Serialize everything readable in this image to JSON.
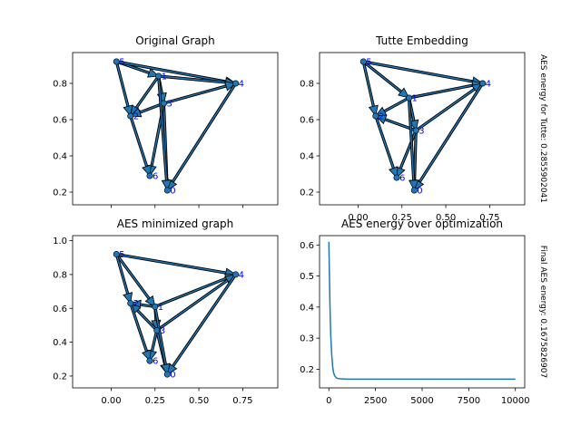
{
  "chart_data": [
    {
      "type": "graph",
      "title": "Original Graph",
      "xlim": [
        -0.22,
        0.95
      ],
      "ylim": [
        0.13,
        0.97
      ],
      "xticks": [
        0.0,
        0.25,
        0.5,
        0.75
      ],
      "xtick_labels": [
        "",
        "",
        "",
        ""
      ],
      "yticks": [
        0.2,
        0.4,
        0.6,
        0.8
      ],
      "ytick_labels": [
        "0.2",
        "0.4",
        "0.6",
        "0.8"
      ],
      "nodes": [
        {
          "id": "0",
          "x": 0.32,
          "y": 0.21
        },
        {
          "id": "1",
          "x": 0.27,
          "y": 0.84
        },
        {
          "id": "2",
          "x": 0.11,
          "y": 0.62
        },
        {
          "id": "3",
          "x": 0.3,
          "y": 0.69
        },
        {
          "id": "4",
          "x": 0.71,
          "y": 0.8
        },
        {
          "id": "5",
          "x": 0.03,
          "y": 0.92
        },
        {
          "id": "6",
          "x": 0.22,
          "y": 0.29
        }
      ],
      "edges": [
        [
          5,
          1
        ],
        [
          5,
          4
        ],
        [
          5,
          2
        ],
        [
          1,
          4
        ],
        [
          1,
          2
        ],
        [
          1,
          3
        ],
        [
          3,
          4
        ],
        [
          3,
          2
        ],
        [
          3,
          0
        ],
        [
          3,
          6
        ],
        [
          2,
          6
        ],
        [
          4,
          0
        ],
        [
          1,
          0
        ]
      ],
      "side_note": ""
    },
    {
      "type": "graph",
      "title": "Tutte Embedding",
      "xlim": [
        -0.22,
        0.95
      ],
      "ylim": [
        0.13,
        0.97
      ],
      "xticks": [
        0.0,
        0.25,
        0.5,
        0.75
      ],
      "xtick_labels": [
        "0.00",
        "0.25",
        "0.50",
        "0.75"
      ],
      "yticks": [
        0.2,
        0.4,
        0.6,
        0.8
      ],
      "ytick_labels": [
        "0.2",
        "0.4",
        "0.6",
        "0.8"
      ],
      "nodes": [
        {
          "id": "0",
          "x": 0.32,
          "y": 0.21
        },
        {
          "id": "1",
          "x": 0.29,
          "y": 0.72
        },
        {
          "id": "2",
          "x": 0.1,
          "y": 0.62
        },
        {
          "id": "3",
          "x": 0.33,
          "y": 0.54
        },
        {
          "id": "4",
          "x": 0.71,
          "y": 0.8
        },
        {
          "id": "5",
          "x": 0.03,
          "y": 0.92
        },
        {
          "id": "6",
          "x": 0.22,
          "y": 0.28
        }
      ],
      "edges": [
        [
          5,
          1
        ],
        [
          5,
          4
        ],
        [
          5,
          2
        ],
        [
          1,
          4
        ],
        [
          1,
          2
        ],
        [
          1,
          3
        ],
        [
          3,
          4
        ],
        [
          3,
          2
        ],
        [
          3,
          0
        ],
        [
          3,
          6
        ],
        [
          2,
          6
        ],
        [
          4,
          0
        ],
        [
          1,
          0
        ]
      ],
      "side_note": "AES energy for Tutte: 0.2855902041"
    },
    {
      "type": "graph",
      "title": "AES minimized graph",
      "xlim": [
        -0.22,
        0.95
      ],
      "ylim": [
        0.13,
        1.03
      ],
      "xticks": [
        0.0,
        0.25,
        0.5,
        0.75
      ],
      "xtick_labels": [
        "0.00",
        "0.25",
        "0.50",
        "0.75"
      ],
      "yticks": [
        0.2,
        0.4,
        0.6,
        0.8,
        1.0
      ],
      "ytick_labels": [
        "0.2",
        "0.4",
        "0.6",
        "0.8",
        "1.0"
      ],
      "nodes": [
        {
          "id": "0",
          "x": 0.32,
          "y": 0.21
        },
        {
          "id": "1",
          "x": 0.25,
          "y": 0.61
        },
        {
          "id": "2",
          "x": 0.11,
          "y": 0.63
        },
        {
          "id": "3",
          "x": 0.26,
          "y": 0.47
        },
        {
          "id": "4",
          "x": 0.71,
          "y": 0.8
        },
        {
          "id": "5",
          "x": 0.03,
          "y": 0.92
        },
        {
          "id": "6",
          "x": 0.22,
          "y": 0.29
        }
      ],
      "edges": [
        [
          5,
          1
        ],
        [
          5,
          4
        ],
        [
          5,
          2
        ],
        [
          1,
          4
        ],
        [
          1,
          2
        ],
        [
          1,
          3
        ],
        [
          3,
          4
        ],
        [
          3,
          2
        ],
        [
          3,
          0
        ],
        [
          3,
          6
        ],
        [
          2,
          6
        ],
        [
          4,
          0
        ],
        [
          1,
          0
        ]
      ],
      "side_note": ""
    },
    {
      "type": "line",
      "title": "AES energy over optimization",
      "xlim": [
        -500,
        10500
      ],
      "ylim": [
        0.14,
        0.63
      ],
      "xticks": [
        0,
        2500,
        5000,
        7500,
        10000
      ],
      "xtick_labels": [
        "0",
        "2500",
        "5000",
        "7500",
        "10000"
      ],
      "yticks": [
        0.2,
        0.3,
        0.4,
        0.5,
        0.6
      ],
      "ytick_labels": [
        "0.2",
        "0.3",
        "0.4",
        "0.5",
        "0.6"
      ],
      "x": [
        0,
        30,
        60,
        100,
        150,
        200,
        250,
        300,
        400,
        500,
        700,
        1000,
        2000,
        4000,
        6000,
        8000,
        10000
      ],
      "y": [
        0.61,
        0.5,
        0.4,
        0.31,
        0.25,
        0.21,
        0.19,
        0.18,
        0.172,
        0.17,
        0.169,
        0.168,
        0.168,
        0.168,
        0.168,
        0.168,
        0.168
      ],
      "side_note": "Final AES energy: 0.1675826907"
    }
  ],
  "colors": {
    "node_fill": "#1f77b4",
    "edge": "#1f2f3f",
    "node_label": "#0000ff",
    "line": "#1f77b4"
  }
}
